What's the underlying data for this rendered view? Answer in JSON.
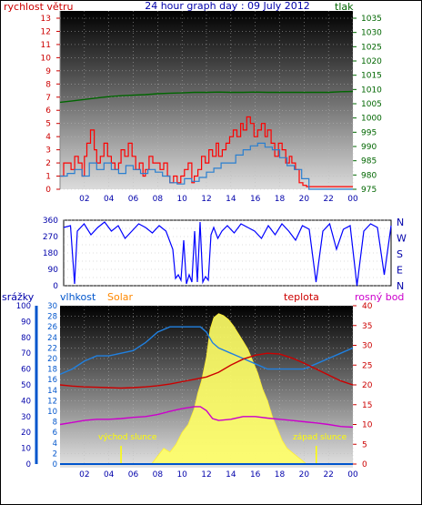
{
  "title": "24 hour graph day : 09 July 2012",
  "colors": {
    "wind": "#ff0000",
    "gust": "#ff0000",
    "pressure": "#006600",
    "direction": "#0000ff",
    "rain": "#0055cc",
    "humidity": "#2080e0",
    "solar": "#ffff66",
    "temp": "#cc0000",
    "dewpoint": "#cc00cc",
    "text_blue": "#0000aa",
    "text_orange": "#ff8800",
    "label_yellow": "#ffff00"
  },
  "chart_data": [
    {
      "id": "wind-pressure",
      "type": "line",
      "left_axis": {
        "label": "rychlost větru",
        "range": [
          0,
          13
        ],
        "ticks": [
          0,
          1,
          2,
          3,
          4,
          5,
          6,
          7,
          8,
          9,
          10,
          11,
          12,
          13
        ]
      },
      "right_axis": {
        "label": "tlak",
        "range": [
          975,
          1035
        ],
        "ticks": [
          975,
          980,
          985,
          990,
          995,
          1000,
          1005,
          1010,
          1015,
          1020,
          1025,
          1030,
          1035
        ]
      },
      "x_ticks": [
        "02",
        "04",
        "06",
        "08",
        "10",
        "12",
        "14",
        "16",
        "18",
        "20",
        "22",
        "00"
      ],
      "x_range_hours": [
        0,
        24
      ],
      "series": [
        {
          "role": "wind_gust",
          "x": [
            0,
            0.3,
            0.6,
            0.9,
            1.2,
            1.5,
            1.8,
            2.0,
            2.2,
            2.5,
            2.8,
            3.0,
            3.3,
            3.6,
            3.9,
            4.2,
            4.5,
            4.8,
            5.0,
            5.3,
            5.6,
            5.9,
            6.2,
            6.5,
            6.8,
            7.0,
            7.3,
            7.6,
            7.9,
            8.2,
            8.5,
            8.8,
            9.0,
            9.3,
            9.6,
            9.9,
            10.2,
            10.5,
            10.8,
            11.0,
            11.3,
            11.6,
            11.9,
            12.2,
            12.5,
            12.8,
            13.0,
            13.3,
            13.6,
            13.9,
            14.2,
            14.5,
            14.8,
            15.0,
            15.3,
            15.6,
            15.9,
            16.2,
            16.5,
            16.8,
            17.0,
            17.3,
            17.6,
            17.9,
            18.2,
            18.5,
            18.8,
            19.0,
            19.3,
            19.6,
            19.9,
            20.2,
            20.5,
            21,
            22,
            23,
            24
          ],
          "y": [
            1,
            2,
            2,
            1.5,
            2.5,
            2,
            1,
            2.5,
            3.5,
            4.5,
            3,
            2,
            2.5,
            3.5,
            2.5,
            2,
            1.5,
            2,
            3,
            2.5,
            3.5,
            2.5,
            1.5,
            2,
            1,
            1.5,
            2.5,
            2,
            2,
            1.5,
            2,
            1,
            0.5,
            1,
            0.5,
            1,
            1.5,
            2,
            0.5,
            1,
            1.5,
            2.5,
            2,
            3,
            2.5,
            3.5,
            2.5,
            3,
            3.5,
            4,
            4.5,
            4,
            5,
            4.5,
            5.5,
            5,
            4,
            4.5,
            5,
            4,
            4.5,
            3.5,
            2.5,
            3.5,
            3,
            2,
            2.5,
            2,
            1.5,
            0.5,
            0.3,
            0.2,
            0.2,
            0.2,
            0.2,
            0.2,
            0.2
          ]
        },
        {
          "role": "wind_avg",
          "x": [
            0,
            0.6,
            1.2,
            1.8,
            2.4,
            3.0,
            3.6,
            4.2,
            4.8,
            5.4,
            6.0,
            6.6,
            7.2,
            7.8,
            8.4,
            9.0,
            9.6,
            10.2,
            10.8,
            11.4,
            12.0,
            12.6,
            13.2,
            13.8,
            14.4,
            15.0,
            15.6,
            16.2,
            16.8,
            17.4,
            18.0,
            18.6,
            19.2,
            19.8,
            20.4,
            24
          ],
          "y": [
            1,
            1.2,
            1.5,
            1,
            2,
            1.5,
            2,
            1.5,
            1.2,
            1.8,
            1.5,
            1.2,
            1.5,
            1.3,
            1,
            0.5,
            0.4,
            0.8,
            0.6,
            0.9,
            1.3,
            1.6,
            2,
            2,
            2.6,
            3,
            3.3,
            3.5,
            3.2,
            3,
            2.4,
            1.8,
            1.5,
            0.8,
            0,
            0
          ]
        },
        {
          "role": "pressure",
          "x": [
            0,
            1,
            2,
            3,
            4,
            5,
            6,
            7,
            8,
            9,
            10,
            11,
            12,
            13,
            14,
            15,
            16,
            17,
            18,
            19,
            20,
            21,
            22,
            23,
            24
          ],
          "y": [
            1005.5,
            1006,
            1006.5,
            1007,
            1007.5,
            1007.8,
            1008,
            1008.2,
            1008.5,
            1008.7,
            1008.8,
            1009,
            1009,
            1009.1,
            1009,
            1009,
            1009.1,
            1009,
            1009,
            1009,
            1009,
            1009,
            1009,
            1009.2,
            1009.3
          ]
        }
      ]
    },
    {
      "id": "wind-direction",
      "type": "line",
      "left_axis": {
        "range": [
          0,
          360
        ],
        "ticks": [
          0,
          45,
          90,
          135,
          180,
          225,
          270,
          315,
          360
        ]
      },
      "right_axis": {
        "labels": [
          "N",
          "W",
          "S",
          "E",
          "N"
        ]
      },
      "x_range_hours": [
        0,
        24
      ],
      "series": [
        {
          "role": "direction",
          "x": [
            0,
            0.5,
            0.8,
            1.0,
            1.5,
            2.0,
            2.5,
            3.0,
            3.5,
            4.0,
            4.5,
            5.0,
            5.5,
            6.0,
            6.5,
            7.0,
            7.5,
            8.0,
            8.2,
            8.4,
            8.6,
            8.8,
            9.0,
            9.2,
            9.4,
            9.6,
            9.8,
            10.0,
            10.2,
            10.4,
            10.6,
            10.8,
            11.0,
            11.3,
            11.6,
            12.0,
            12.5,
            13.0,
            13.5,
            14.0,
            14.5,
            15.0,
            15.5,
            16.0,
            16.5,
            17.0,
            17.5,
            18.0,
            18.5,
            19.0,
            19.5,
            20.0,
            20.5,
            21.0,
            21.5,
            22.0,
            22.5,
            23.0,
            23.5,
            24.0
          ],
          "y": [
            320,
            330,
            10,
            300,
            340,
            280,
            320,
            350,
            300,
            330,
            260,
            300,
            340,
            320,
            290,
            330,
            300,
            200,
            40,
            60,
            30,
            250,
            10,
            60,
            20,
            300,
            20,
            350,
            20,
            50,
            30,
            280,
            320,
            260,
            300,
            330,
            290,
            340,
            320,
            300,
            260,
            330,
            280,
            340,
            300,
            250,
            330,
            310,
            20,
            300,
            340,
            200,
            310,
            330,
            0,
            300,
            340,
            320,
            60,
            330
          ]
        }
      ]
    },
    {
      "id": "temp-humidity-solar",
      "type": "line",
      "axes": {
        "rain": {
          "label": "srážky",
          "range": [
            0,
            100
          ],
          "ticks": [
            0,
            10,
            20,
            30,
            40,
            50,
            60,
            70,
            80,
            90,
            100
          ]
        },
        "humidity": {
          "label": "vlhkost",
          "range": [
            0,
            30
          ],
          "ticks": [
            0,
            2,
            4,
            6,
            8,
            10,
            12,
            14,
            16,
            18,
            20,
            22,
            24,
            26,
            28,
            30
          ]
        },
        "solar": {
          "label": "Solar"
        },
        "temp": {
          "label": "teplota",
          "range": [
            0,
            40
          ],
          "ticks": [
            0,
            5,
            10,
            15,
            20,
            25,
            30,
            35,
            40
          ]
        },
        "dewpoint": {
          "label": "rosný bod"
        }
      },
      "x_ticks": [
        "02",
        "04",
        "06",
        "08",
        "10",
        "12",
        "14",
        "16",
        "18",
        "20",
        "22",
        "00"
      ],
      "x_range_hours": [
        0,
        24
      ],
      "annotations": [
        {
          "text": "východ slunce",
          "hour": 5.0
        },
        {
          "text": "západ slunce",
          "hour": 21.0
        }
      ],
      "series": [
        {
          "role": "solar",
          "x": [
            0,
            7.5,
            8.0,
            8.5,
            9.0,
            9.5,
            10.0,
            10.5,
            11.0,
            11.3,
            11.6,
            12.0,
            12.3,
            12.6,
            13.0,
            13.4,
            13.8,
            14.2,
            14.6,
            15.0,
            15.4,
            15.8,
            16.2,
            16.6,
            17.0,
            17.4,
            17.8,
            18.2,
            18.6,
            19.0,
            19.4,
            19.8,
            20.2,
            24
          ],
          "y": [
            0,
            0,
            2,
            4,
            3,
            5,
            8,
            10,
            14,
            18,
            21,
            27,
            34,
            37,
            38,
            37.5,
            36.5,
            35,
            33,
            31,
            29,
            26,
            23,
            19,
            16,
            12,
            9,
            6,
            4,
            3,
            2,
            1,
            0,
            0
          ]
        },
        {
          "role": "humidity",
          "x": [
            0,
            1,
            2,
            3,
            4,
            5,
            6,
            7,
            7.5,
            8,
            8.5,
            9,
            10,
            11,
            11.5,
            12,
            12.5,
            13,
            14,
            15,
            16,
            17,
            18,
            19,
            20,
            21,
            22,
            23,
            24
          ],
          "y": [
            17,
            18,
            19.5,
            20.5,
            20.5,
            21,
            21.5,
            23,
            24,
            25,
            25.5,
            26,
            26,
            26,
            26,
            25,
            23,
            22,
            21,
            20,
            19,
            18,
            18,
            18,
            18,
            19,
            20,
            21,
            22
          ]
        },
        {
          "role": "temperature",
          "x": [
            0,
            1,
            2,
            3,
            4,
            5,
            6,
            7,
            8,
            9,
            10,
            11,
            12,
            13,
            14,
            15,
            16,
            17,
            18,
            19,
            20,
            21,
            22,
            23,
            24
          ],
          "y": [
            20,
            19.7,
            19.5,
            19.4,
            19.3,
            19.2,
            19.3,
            19.5,
            19.8,
            20.2,
            20.8,
            21.4,
            22,
            23.2,
            25,
            26.5,
            27.5,
            28,
            27.8,
            26.8,
            25.5,
            24,
            22.5,
            21,
            20
          ]
        },
        {
          "role": "dewpoint",
          "x": [
            0,
            1,
            2,
            3,
            4,
            5,
            6,
            7,
            8,
            9,
            10,
            11,
            11.5,
            12,
            12.5,
            13,
            14,
            15,
            16,
            17,
            18,
            19,
            20,
            21,
            22,
            23,
            24
          ],
          "y": [
            10,
            10.5,
            11,
            11.3,
            11.3,
            11.5,
            11.8,
            12,
            12.5,
            13.3,
            14,
            14.5,
            14.5,
            13.5,
            11.5,
            11,
            11.3,
            12,
            12,
            11.6,
            11.3,
            11,
            10.7,
            10.4,
            10,
            9.5,
            9.3
          ]
        },
        {
          "role": "rain",
          "x": [
            0,
            24
          ],
          "y": [
            0,
            0
          ]
        }
      ]
    }
  ]
}
